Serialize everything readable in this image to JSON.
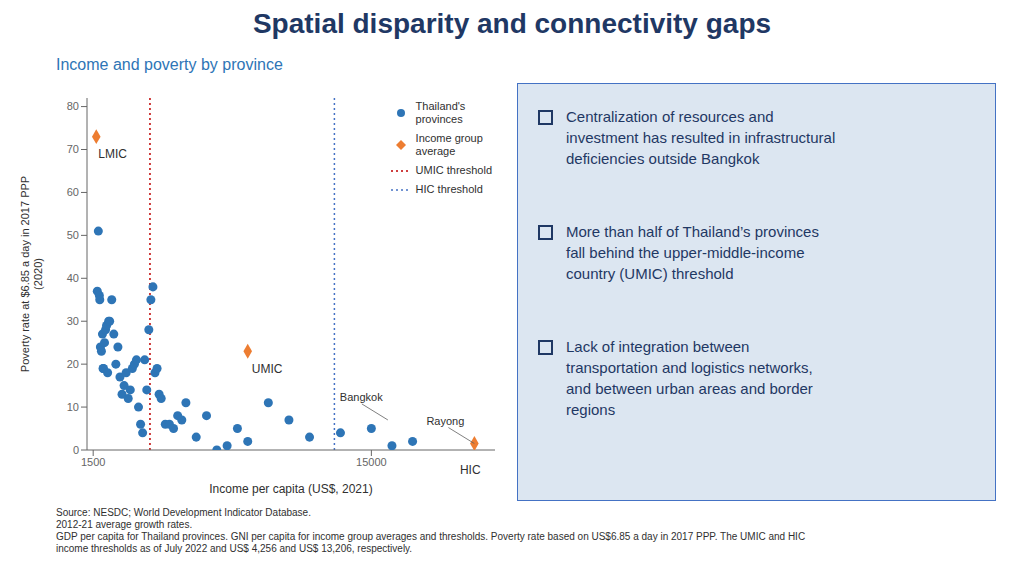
{
  "chart_data": {
    "type": "scatter",
    "title": "Spatial disparity and connectivity gaps",
    "subtitle": "Income and poverty by province",
    "title_color": "#1f3864",
    "subtitle_color": "#2e75b6",
    "text_color": "#303030",
    "background_color": "#ffffff",
    "xlabel": "Income per capita (US$, 2021)",
    "ylabel": "Poverty rate at $6.85 a day in 2017 PPP\n(2020)",
    "series": [
      {
        "name": "Thailand's\nprovinces",
        "color": "#2e75b6",
        "marker": "circle",
        "x": [
          1700,
          1750,
          1800,
          1820,
          1850,
          1900,
          1950,
          1980,
          2000,
          2050,
          2100,
          2150,
          2200,
          2250,
          2300,
          2400,
          2500,
          2600,
          2700,
          2800,
          2900,
          3000,
          3100,
          3200,
          3300,
          3400,
          3500,
          3600,
          3700,
          3800,
          3900,
          4000,
          4100,
          4200,
          4300,
          4400,
          4500,
          4600,
          4700,
          4800,
          5000,
          5200,
          5400,
          5600,
          5800,
          6000,
          6500,
          7000,
          7500,
          8000,
          8500,
          9000,
          10000,
          11000,
          12000,
          13500,
          15000,
          16000,
          17000
        ],
        "values": [
          37,
          51,
          36,
          35,
          24,
          23,
          27,
          19,
          19,
          25,
          28,
          29,
          18,
          30,
          30,
          35,
          27,
          20,
          24,
          17,
          13,
          15,
          18,
          12,
          14,
          19,
          20,
          21,
          10,
          6,
          4,
          21,
          14,
          28,
          35,
          38,
          18,
          19,
          13,
          12,
          6,
          6,
          5,
          8,
          7,
          11,
          3,
          8,
          0,
          1,
          5,
          2,
          11,
          7,
          3,
          4,
          5,
          1,
          2
        ]
      },
      {
        "name": "Income group\naverage",
        "color": "#ed7d31",
        "marker": "diamond",
        "x": [
          1650,
          9000,
          20000
        ],
        "values": [
          73,
          23,
          1.5
        ]
      }
    ],
    "reference_lines": [
      {
        "name": "UMIC threshold",
        "x": 4256,
        "color": "#c00000",
        "line_style": "dotted"
      },
      {
        "name": "HIC threshold",
        "x": 13206,
        "color": "#4472c4",
        "line_style": "dotted"
      }
    ],
    "xlim": [
      1200,
      21000
    ],
    "ylim": [
      0,
      82
    ],
    "xticks": [
      1500,
      15000
    ],
    "yticks": [
      0,
      10,
      20,
      30,
      40,
      50,
      60,
      70,
      80
    ],
    "grid": false,
    "legend": "upper right",
    "annotations": [
      {
        "text": "LMIC",
        "x": 1750,
        "y": 70
      },
      {
        "text": "UMIC",
        "x": 9200,
        "y": 20
      }
    ],
    "callouts": [
      {
        "text": "Bangkok",
        "x": 15800,
        "y": 7
      },
      {
        "text": "Rayong",
        "x": 20000,
        "y": 1.5
      }
    ],
    "x_axis_notes": [
      {
        "text": "HIC",
        "x": 19800
      }
    ],
    "panel": {
      "color": "#dce6f1",
      "border_color": "#4472c4",
      "text_color": "#1f3864",
      "bullets": [
        "Centralization of resources and\ninvestment has resulted in infrastructural\ndeficiencies outside Bangkok",
        "More than half of Thailand’s provinces\nfall behind the upper-middle-income\ncountry (UMIC) threshold",
        "Lack of integration between\ntransportation and logistics networks,\nand between urban areas and border\nregions"
      ]
    },
    "source": [
      "Source: NESDC; World Development Indicator Database.",
      "2012-21 average growth rates.",
      "GDP per capita for Thailand provinces. GNI per capita for income group averages and thresholds. Poverty rate based on US$6.85 a day in 2017 PPP. The UMIC and HIC",
      "income thresholds as of July 2022 and US$ 4,256 and US$ 13,206, respectively."
    ]
  }
}
